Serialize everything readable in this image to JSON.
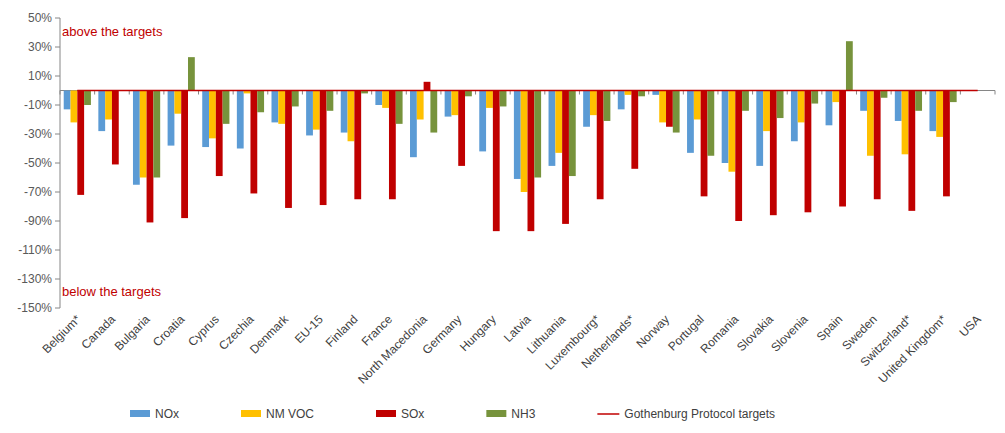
{
  "chart_data": {
    "type": "bar",
    "categories": [
      "Belgium*",
      "Canada",
      "Bulgaria",
      "Croatia",
      "Cyprus",
      "Czechia",
      "Denmark",
      "EU-15",
      "Finland",
      "France",
      "North Macedonia",
      "Germany",
      "Hungary",
      "Latvia",
      "Lithuania",
      "Luxembourg*",
      "Netherlands*",
      "Norway",
      "Portugal",
      "Romania",
      "Slovakia",
      "Slovenia",
      "Spain",
      "Sweden",
      "Switzerland*",
      "United Kingdom*",
      "USA"
    ],
    "series": [
      {
        "name": "NOx",
        "color": "#5b9bd5",
        "values": [
          -13,
          -28,
          -65,
          -38,
          -39,
          -40,
          -22,
          -31,
          -29,
          -10,
          -46,
          -18,
          -42,
          -61,
          -52,
          -25,
          -13,
          -3,
          -43,
          -50,
          -52,
          -35,
          -24,
          -14,
          -21,
          -28,
          null
        ]
      },
      {
        "name": "NM VOC",
        "color": "#ffc000",
        "values": [
          -22,
          -20,
          -60,
          -16,
          -33,
          -2,
          -23,
          -27,
          -35,
          -12,
          -20,
          -17,
          -12,
          -70,
          -43,
          -17,
          -3,
          -22,
          -20,
          -56,
          -28,
          -22,
          -8,
          -45,
          -44,
          -32,
          null
        ]
      },
      {
        "name": "SOx",
        "color": "#c00000",
        "values": [
          -72,
          -51,
          -91,
          -88,
          -59,
          -71,
          -81,
          -79,
          -75,
          -75,
          6,
          -52,
          -97,
          -97,
          -92,
          -75,
          -54,
          -25,
          -73,
          -90,
          -86,
          -84,
          -80,
          -75,
          -83,
          -73,
          null
        ]
      },
      {
        "name": "NH3",
        "color": "#77933c",
        "values": [
          -10,
          null,
          -60,
          23,
          -23,
          -15,
          -11,
          -14,
          -2,
          -23,
          -29,
          -4,
          -11,
          -60,
          -59,
          -21,
          -4,
          -29,
          -45,
          -14,
          -19,
          -9,
          34,
          -5,
          -14,
          -8,
          null
        ]
      },
      {
        "name": "Gothenburg Protocol targets",
        "type": "line",
        "color": "#c00000",
        "values": [
          0,
          0,
          0,
          0,
          0,
          0,
          0,
          0,
          0,
          0,
          0,
          0,
          0,
          0,
          0,
          0,
          0,
          0,
          0,
          0,
          0,
          0,
          0,
          0,
          0,
          0,
          0
        ]
      }
    ],
    "annotations": [
      "above the targets",
      "below the targets"
    ],
    "ylim": [
      -150,
      50
    ],
    "yticks": [
      {
        "value": 50,
        "label": "50%"
      },
      {
        "value": 30,
        "label": "30%"
      },
      {
        "value": 10,
        "label": "10%"
      },
      {
        "value": -10,
        "label": "-10%"
      },
      {
        "value": -30,
        "label": "-30%"
      },
      {
        "value": -50,
        "label": "-50%"
      },
      {
        "value": -70,
        "label": "-70%"
      },
      {
        "value": -90,
        "label": "-90%"
      },
      {
        "value": -110,
        "label": "-110%"
      },
      {
        "value": -130,
        "label": "-130%"
      },
      {
        "value": -150,
        "label": "-150%"
      }
    ],
    "grid": false,
    "legend": "bottom"
  }
}
